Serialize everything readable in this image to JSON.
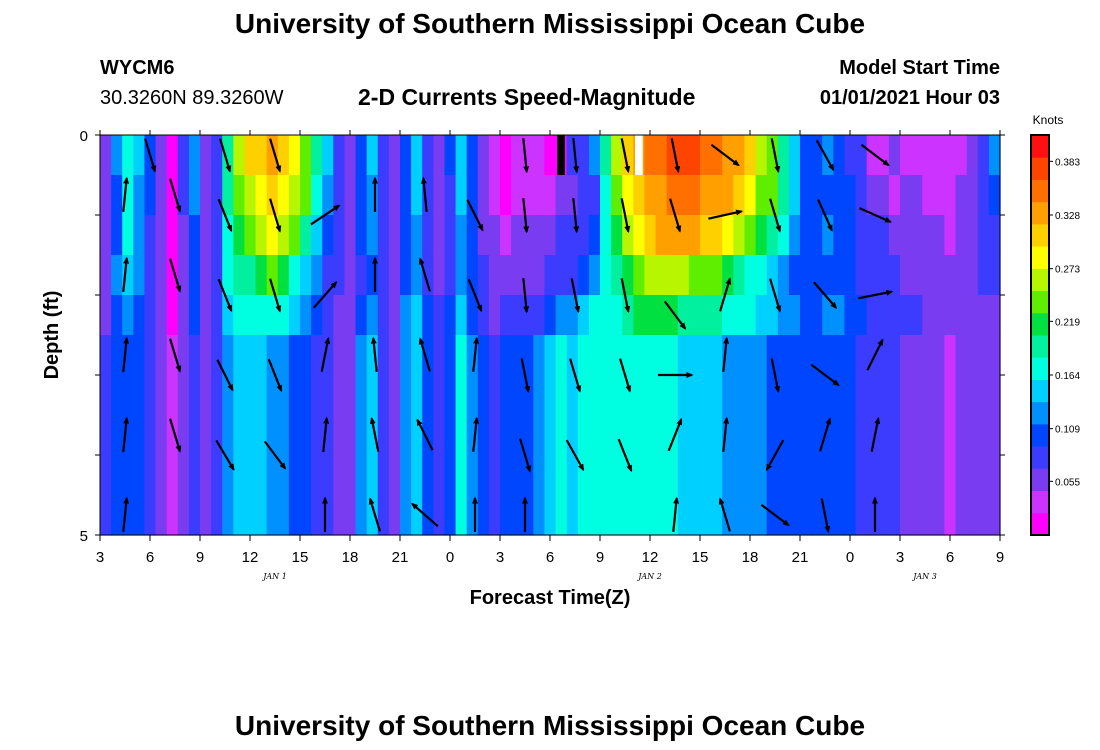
{
  "page": {
    "title_top": "University of Southern Mississippi Ocean Cube",
    "title_bottom": "University of Southern Mississippi Ocean Cube",
    "station_id": "WYCM6",
    "station_location": "30.3260N 89.3260W",
    "plot_title": "2-D Currents Speed-Magnitude",
    "model_start_label": "Model Start Time",
    "model_start_value": "01/01/2021 Hour 03"
  },
  "colors": {
    "palette": [
      "#ff00ff",
      "#cc33ff",
      "#7a3cf0",
      "#3c3cff",
      "#0046ff",
      "#0090ff",
      "#00d0ff",
      "#00ffe0",
      "#00f0a0",
      "#00e040",
      "#60ee00",
      "#b8f500",
      "#ffff00",
      "#ffd000",
      "#ffa000",
      "#ff7000",
      "#ff4400",
      "#ff1010"
    ],
    "arrow": "#000000",
    "missing": "#000000"
  },
  "chart_data": {
    "type": "heatmap",
    "xlabel": "Forecast Time(Z)",
    "ylabel": "Depth (ft)",
    "ylim": [
      0,
      5
    ],
    "x_tick_labels": [
      "3",
      "6",
      "9",
      "12",
      "15",
      "18",
      "21",
      "0",
      "3",
      "6",
      "9",
      "12",
      "15",
      "18",
      "21",
      "0",
      "3",
      "6",
      "9"
    ],
    "y_tick_labels": [
      "0",
      "5"
    ],
    "date_labels": [
      "JAN 1",
      "JAN 2",
      "JAN 3"
    ],
    "colorbar": {
      "unit": "Knots",
      "range": [
        0,
        0.41
      ],
      "ticks": [
        "0.383",
        "0.328",
        "0.273",
        "0.219",
        "0.164",
        "0.109",
        "0.055"
      ]
    },
    "hours_from_start": 54,
    "depths": [
      0.25,
      0.75,
      1.25,
      1.75,
      2.25,
      2.75
    ],
    "speed_columns": [
      [
        0.05,
        0.05,
        0.06,
        0.06,
        0.06,
        0.07
      ],
      [
        0.12,
        0.11,
        0.11,
        0.12,
        0.11,
        0.11
      ],
      [
        0.18,
        0.17,
        0.16,
        0.15,
        0.13,
        0.11
      ],
      [
        0.14,
        0.13,
        0.12,
        0.12,
        0.11,
        0.1
      ],
      [
        0.1,
        0.1,
        0.09,
        0.09,
        0.08,
        0.08
      ],
      [
        0.06,
        0.06,
        0.05,
        0.05,
        0.05,
        0.05
      ],
      [
        0.02,
        0.02,
        0.02,
        0.02,
        0.02,
        0.03
      ],
      [
        0.07,
        0.07,
        0.06,
        0.06,
        0.06,
        0.06
      ],
      [
        0.12,
        0.12,
        0.11,
        0.11,
        0.1,
        0.09
      ],
      [
        0.05,
        0.05,
        0.05,
        0.05,
        0.05,
        0.05
      ],
      [
        0.09,
        0.09,
        0.08,
        0.08,
        0.08,
        0.08
      ],
      [
        0.2,
        0.2,
        0.18,
        0.16,
        0.15,
        0.13
      ],
      [
        0.27,
        0.24,
        0.22,
        0.19,
        0.17,
        0.15
      ],
      [
        0.3,
        0.27,
        0.24,
        0.2,
        0.17,
        0.14
      ],
      [
        0.31,
        0.29,
        0.27,
        0.22,
        0.18,
        0.14
      ],
      [
        0.32,
        0.3,
        0.28,
        0.23,
        0.18,
        0.12
      ],
      [
        0.3,
        0.29,
        0.27,
        0.21,
        0.17,
        0.12
      ],
      [
        0.28,
        0.27,
        0.24,
        0.18,
        0.14,
        0.11
      ],
      [
        0.25,
        0.23,
        0.2,
        0.15,
        0.12,
        0.1
      ],
      [
        0.2,
        0.18,
        0.15,
        0.12,
        0.1,
        0.08
      ],
      [
        0.14,
        0.13,
        0.11,
        0.09,
        0.08,
        0.07
      ],
      [
        0.08,
        0.08,
        0.07,
        0.07,
        0.06,
        0.06
      ],
      [
        0.06,
        0.06,
        0.06,
        0.06,
        0.06,
        0.06
      ],
      [
        0.11,
        0.1,
        0.1,
        0.09,
        0.1,
        0.12
      ],
      [
        0.14,
        0.13,
        0.12,
        0.11,
        0.13,
        0.15
      ],
      [
        0.08,
        0.08,
        0.08,
        0.08,
        0.09,
        0.09
      ],
      [
        0.05,
        0.05,
        0.05,
        0.05,
        0.06,
        0.05
      ],
      [
        0.1,
        0.1,
        0.1,
        0.11,
        0.12,
        0.12
      ],
      [
        0.14,
        0.14,
        0.13,
        0.13,
        0.14,
        0.15
      ],
      [
        0.09,
        0.09,
        0.09,
        0.09,
        0.1,
        0.1
      ],
      [
        0.06,
        0.06,
        0.06,
        0.06,
        0.07,
        0.07
      ],
      [
        0.1,
        0.09,
        0.09,
        0.09,
        0.1,
        0.11
      ],
      [
        0.15,
        0.14,
        0.13,
        0.13,
        0.15,
        0.17
      ],
      [
        0.1,
        0.1,
        0.1,
        0.1,
        0.11,
        0.12
      ],
      [
        0.06,
        0.06,
        0.06,
        0.07,
        0.08,
        0.1
      ],
      [
        0.04,
        0.04,
        0.05,
        0.05,
        0.06,
        0.08
      ],
      [
        0.02,
        0.02,
        0.03,
        0.05,
        0.08,
        0.1
      ],
      [
        0.03,
        0.03,
        0.05,
        0.06,
        0.09,
        0.11
      ],
      [
        0.04,
        0.04,
        0.05,
        0.06,
        0.08,
        0.1
      ],
      [
        0.03,
        0.04,
        0.05,
        0.06,
        0.09,
        0.13
      ],
      [
        0.02,
        0.04,
        0.06,
        0.07,
        0.1,
        0.14
      ],
      [
        0.0,
        0.05,
        0.07,
        0.08,
        0.12,
        0.16
      ],
      [
        0.08,
        0.06,
        0.08,
        0.09,
        0.13,
        0.15
      ],
      [
        0.09,
        0.07,
        0.09,
        0.11,
        0.15,
        0.17
      ],
      [
        0.12,
        0.09,
        0.11,
        0.13,
        0.16,
        0.18
      ],
      [
        0.2,
        0.18,
        0.17,
        0.16,
        0.16,
        0.17
      ],
      [
        0.27,
        0.24,
        0.22,
        0.19,
        0.17,
        0.16
      ],
      [
        0.31,
        0.29,
        0.27,
        0.22,
        0.2,
        0.17
      ],
      [
        0.33,
        0.31,
        0.28,
        0.24,
        0.21,
        0.16
      ],
      [
        0.35,
        0.33,
        0.31,
        0.26,
        0.22,
        0.17
      ],
      [
        0.36,
        0.34,
        0.32,
        0.26,
        0.22,
        0.16
      ],
      [
        0.37,
        0.35,
        0.33,
        0.27,
        0.21,
        0.16
      ],
      [
        0.38,
        0.36,
        0.33,
        0.26,
        0.2,
        0.15
      ],
      [
        0.37,
        0.35,
        0.32,
        0.25,
        0.2,
        0.15
      ],
      [
        0.36,
        0.34,
        0.31,
        0.24,
        0.19,
        0.14
      ],
      [
        0.35,
        0.33,
        0.3,
        0.24,
        0.19,
        0.14
      ],
      [
        0.34,
        0.32,
        0.28,
        0.22,
        0.18,
        0.13
      ],
      [
        0.33,
        0.31,
        0.26,
        0.2,
        0.17,
        0.13
      ],
      [
        0.3,
        0.28,
        0.23,
        0.18,
        0.16,
        0.12
      ],
      [
        0.27,
        0.25,
        0.21,
        0.16,
        0.15,
        0.12
      ],
      [
        0.24,
        0.23,
        0.19,
        0.15,
        0.14,
        0.11
      ],
      [
        0.2,
        0.19,
        0.16,
        0.13,
        0.13,
        0.11
      ],
      [
        0.15,
        0.14,
        0.13,
        0.11,
        0.12,
        0.1
      ],
      [
        0.11,
        0.11,
        0.11,
        0.1,
        0.11,
        0.1
      ],
      [
        0.1,
        0.1,
        0.11,
        0.11,
        0.11,
        0.1
      ],
      [
        0.12,
        0.11,
        0.12,
        0.11,
        0.12,
        0.11
      ],
      [
        0.11,
        0.11,
        0.11,
        0.11,
        0.12,
        0.11
      ],
      [
        0.09,
        0.1,
        0.1,
        0.1,
        0.11,
        0.1
      ],
      [
        0.07,
        0.08,
        0.09,
        0.09,
        0.1,
        0.09
      ],
      [
        0.04,
        0.06,
        0.08,
        0.08,
        0.09,
        0.08
      ],
      [
        0.03,
        0.05,
        0.07,
        0.07,
        0.08,
        0.07
      ],
      [
        0.05,
        0.04,
        0.06,
        0.07,
        0.08,
        0.07
      ],
      [
        0.04,
        0.05,
        0.06,
        0.06,
        0.07,
        0.06
      ],
      [
        0.03,
        0.05,
        0.06,
        0.06,
        0.07,
        0.06
      ],
      [
        0.03,
        0.04,
        0.05,
        0.06,
        0.06,
        0.05
      ],
      [
        0.03,
        0.04,
        0.05,
        0.05,
        0.05,
        0.05
      ],
      [
        0.03,
        0.04,
        0.04,
        0.05,
        0.05,
        0.04
      ],
      [
        0.04,
        0.05,
        0.05,
        0.05,
        0.05,
        0.05
      ],
      [
        0.05,
        0.06,
        0.06,
        0.06,
        0.06,
        0.05
      ],
      [
        0.08,
        0.08,
        0.07,
        0.07,
        0.06,
        0.05
      ],
      [
        0.13,
        0.11,
        0.09,
        0.07,
        0.06,
        0.05
      ]
    ],
    "missing_cells": [
      {
        "time_index": 41,
        "depth_index": 0,
        "color": "missing"
      },
      {
        "time_index": 48,
        "depth_index": 0,
        "color": "white"
      }
    ],
    "vectors": [
      {
        "x": 3.0,
        "y": 0.25,
        "u": 0.3,
        "v": -1.0
      },
      {
        "x": 1.5,
        "y": 0.75,
        "u": 0.1,
        "v": 1.0
      },
      {
        "x": 4.5,
        "y": 0.75,
        "u": 0.3,
        "v": -1.0
      },
      {
        "x": 1.5,
        "y": 1.75,
        "u": 0.1,
        "v": 1.0
      },
      {
        "x": 4.5,
        "y": 1.75,
        "u": 0.3,
        "v": -1.0
      },
      {
        "x": 1.5,
        "y": 2.75,
        "u": 0.1,
        "v": 1.0
      },
      {
        "x": 4.5,
        "y": 2.75,
        "u": 0.3,
        "v": -1.0
      },
      {
        "x": 1.5,
        "y": 3.75,
        "u": 0.1,
        "v": 1.0
      },
      {
        "x": 4.5,
        "y": 3.75,
        "u": 0.3,
        "v": -1.0
      },
      {
        "x": 1.5,
        "y": 4.75,
        "u": 0.1,
        "v": 1.0
      },
      {
        "x": 7.5,
        "y": 0.25,
        "u": 0.3,
        "v": -1.0
      },
      {
        "x": 7.5,
        "y": 1.0,
        "u": 0.4,
        "v": -1.0
      },
      {
        "x": 7.5,
        "y": 2.0,
        "u": 0.4,
        "v": -1.0
      },
      {
        "x": 7.5,
        "y": 3.0,
        "u": 0.5,
        "v": -1.0
      },
      {
        "x": 7.5,
        "y": 4.0,
        "u": 0.6,
        "v": -1.0
      },
      {
        "x": 10.5,
        "y": 0.25,
        "u": 0.3,
        "v": -1.0
      },
      {
        "x": 10.5,
        "y": 1.0,
        "u": 0.3,
        "v": -1.0
      },
      {
        "x": 10.5,
        "y": 2.0,
        "u": 0.3,
        "v": -1.0
      },
      {
        "x": 10.5,
        "y": 3.0,
        "u": 0.4,
        "v": -1.0
      },
      {
        "x": 10.5,
        "y": 4.0,
        "u": 0.6,
        "v": -0.8
      },
      {
        "x": 13.5,
        "y": 1.0,
        "u": 0.9,
        "v": 0.6
      },
      {
        "x": 13.5,
        "y": 2.0,
        "u": 0.7,
        "v": 0.8
      },
      {
        "x": 13.5,
        "y": 2.75,
        "u": 0.2,
        "v": 1.0
      },
      {
        "x": 13.5,
        "y": 3.75,
        "u": 0.1,
        "v": 1.0
      },
      {
        "x": 13.5,
        "y": 4.75,
        "u": 0.0,
        "v": 1.0
      },
      {
        "x": 16.5,
        "y": 0.75,
        "u": 0.0,
        "v": 1.0
      },
      {
        "x": 16.5,
        "y": 1.75,
        "u": 0.0,
        "v": 1.0
      },
      {
        "x": 16.5,
        "y": 2.75,
        "u": -0.1,
        "v": 1.0
      },
      {
        "x": 16.5,
        "y": 3.75,
        "u": -0.2,
        "v": 1.0
      },
      {
        "x": 16.5,
        "y": 4.75,
        "u": -0.3,
        "v": 1.0
      },
      {
        "x": 19.5,
        "y": 0.75,
        "u": -0.1,
        "v": 1.0
      },
      {
        "x": 19.5,
        "y": 1.75,
        "u": -0.3,
        "v": 1.0
      },
      {
        "x": 19.5,
        "y": 2.75,
        "u": -0.3,
        "v": 1.0
      },
      {
        "x": 19.5,
        "y": 3.75,
        "u": -0.5,
        "v": 1.0
      },
      {
        "x": 19.5,
        "y": 4.75,
        "u": -0.8,
        "v": 0.7
      },
      {
        "x": 22.5,
        "y": 1.0,
        "u": 0.5,
        "v": -1.0
      },
      {
        "x": 22.5,
        "y": 2.0,
        "u": 0.4,
        "v": -1.0
      },
      {
        "x": 22.5,
        "y": 2.75,
        "u": 0.1,
        "v": 1.0
      },
      {
        "x": 22.5,
        "y": 3.75,
        "u": 0.1,
        "v": 1.0
      },
      {
        "x": 22.5,
        "y": 4.75,
        "u": 0.0,
        "v": 1.0
      },
      {
        "x": 25.5,
        "y": 0.25,
        "u": 0.1,
        "v": -1.0
      },
      {
        "x": 25.5,
        "y": 1.0,
        "u": 0.1,
        "v": -1.0
      },
      {
        "x": 25.5,
        "y": 2.0,
        "u": 0.1,
        "v": -1.0
      },
      {
        "x": 25.5,
        "y": 3.0,
        "u": 0.2,
        "v": -1.0
      },
      {
        "x": 25.5,
        "y": 4.0,
        "u": 0.3,
        "v": -1.0
      },
      {
        "x": 25.5,
        "y": 4.75,
        "u": 0.0,
        "v": 1.0
      },
      {
        "x": 28.5,
        "y": 0.25,
        "u": 0.1,
        "v": -1.0
      },
      {
        "x": 28.5,
        "y": 1.0,
        "u": 0.1,
        "v": -1.0
      },
      {
        "x": 28.5,
        "y": 2.0,
        "u": 0.2,
        "v": -1.0
      },
      {
        "x": 28.5,
        "y": 3.0,
        "u": 0.3,
        "v": -1.0
      },
      {
        "x": 28.5,
        "y": 4.0,
        "u": 0.5,
        "v": -0.9
      },
      {
        "x": 31.5,
        "y": 0.25,
        "u": 0.2,
        "v": -1.0
      },
      {
        "x": 31.5,
        "y": 1.0,
        "u": 0.2,
        "v": -1.0
      },
      {
        "x": 31.5,
        "y": 2.0,
        "u": 0.2,
        "v": -1.0
      },
      {
        "x": 31.5,
        "y": 3.0,
        "u": 0.3,
        "v": -1.0
      },
      {
        "x": 31.5,
        "y": 4.0,
        "u": 0.4,
        "v": -1.0
      },
      {
        "x": 34.5,
        "y": 0.25,
        "u": 0.2,
        "v": -1.0
      },
      {
        "x": 34.5,
        "y": 1.0,
        "u": 0.3,
        "v": -1.0
      },
      {
        "x": 34.5,
        "y": 2.25,
        "u": 0.6,
        "v": -0.8
      },
      {
        "x": 34.5,
        "y": 3.0,
        "u": 1.0,
        "v": 0.0
      },
      {
        "x": 34.5,
        "y": 3.75,
        "u": 0.4,
        "v": 1.0
      },
      {
        "x": 34.5,
        "y": 4.75,
        "u": 0.1,
        "v": 1.0
      },
      {
        "x": 37.5,
        "y": 0.25,
        "u": 0.8,
        "v": -0.6
      },
      {
        "x": 37.5,
        "y": 1.0,
        "u": 0.9,
        "v": 0.2
      },
      {
        "x": 37.5,
        "y": 2.0,
        "u": 0.3,
        "v": 1.0
      },
      {
        "x": 37.5,
        "y": 2.75,
        "u": 0.1,
        "v": 1.0
      },
      {
        "x": 37.5,
        "y": 3.75,
        "u": 0.1,
        "v": 1.0
      },
      {
        "x": 37.5,
        "y": 4.75,
        "u": -0.3,
        "v": 1.0
      },
      {
        "x": 40.5,
        "y": 0.25,
        "u": 0.2,
        "v": -1.0
      },
      {
        "x": 40.5,
        "y": 1.0,
        "u": 0.3,
        "v": -1.0
      },
      {
        "x": 40.5,
        "y": 2.0,
        "u": 0.3,
        "v": -1.0
      },
      {
        "x": 40.5,
        "y": 3.0,
        "u": 0.2,
        "v": -1.0
      },
      {
        "x": 40.5,
        "y": 4.0,
        "u": -0.5,
        "v": -0.9
      },
      {
        "x": 40.5,
        "y": 4.75,
        "u": 0.8,
        "v": -0.6
      },
      {
        "x": 43.5,
        "y": 0.25,
        "u": 0.5,
        "v": -0.9
      },
      {
        "x": 43.5,
        "y": 1.0,
        "u": 0.4,
        "v": -0.9
      },
      {
        "x": 43.5,
        "y": 2.0,
        "u": 0.6,
        "v": -0.7
      },
      {
        "x": 43.5,
        "y": 3.0,
        "u": 0.8,
        "v": -0.6
      },
      {
        "x": 43.5,
        "y": 3.75,
        "u": 0.3,
        "v": 1.0
      },
      {
        "x": 43.5,
        "y": 4.75,
        "u": 0.2,
        "v": -1.0
      },
      {
        "x": 46.5,
        "y": 0.25,
        "u": 0.8,
        "v": -0.6
      },
      {
        "x": 46.5,
        "y": 1.0,
        "u": 0.9,
        "v": -0.4
      },
      {
        "x": 46.5,
        "y": 2.0,
        "u": 1.0,
        "v": 0.2
      },
      {
        "x": 46.5,
        "y": 2.75,
        "u": 0.5,
        "v": 1.0
      },
      {
        "x": 46.5,
        "y": 3.75,
        "u": 0.2,
        "v": 1.0
      },
      {
        "x": 46.5,
        "y": 4.75,
        "u": 0.0,
        "v": 1.0
      }
    ]
  }
}
